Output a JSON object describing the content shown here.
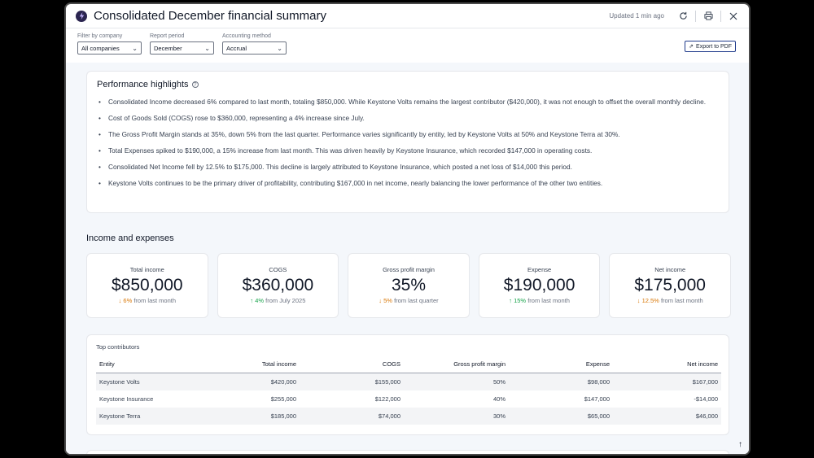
{
  "window": {
    "title": "Consolidated December financial summary",
    "updated": "Updated 1 min ago"
  },
  "filters": [
    {
      "label": "Filter by company",
      "value": "All companies"
    },
    {
      "label": "Report period",
      "value": "December"
    },
    {
      "label": "Accounting method",
      "value": "Accrual"
    }
  ],
  "export_label": "Export to PDF",
  "highlights": {
    "title": "Performance highlights",
    "items": [
      "Consolidated Income decreased 6% compared to last month, totaling $850,000. While Keystone Volts remains the largest contributor ($420,000), it was not enough to offset the overall monthly decline.",
      "Cost of Goods Sold (COGS) rose to $360,000, representing a 4% increase since July.",
      "The Gross Profit Margin stands at 35%, down 5% from the last quarter. Performance varies significantly by entity, led by Keystone Volts at 50% and Keystone Terra at 30%.",
      "Total Expenses spiked to $190,000, a 15% increase from last month. This was driven heavily by Keystone Insurance, which recorded $147,000 in operating costs.",
      "Consolidated Net Income fell by 12.5% to $175,000. This decline is largely attributed to Keystone Insurance, which posted a net loss of $14,000 this period.",
      "Keystone Volts continues to be the primary driver of profitability, contributing $167,000 in net income, nearly balancing the lower performance of the other two entities."
    ]
  },
  "income_section_title": "Income and expenses",
  "kpis": [
    {
      "label": "Total income",
      "value": "$850,000",
      "arrow": "↓",
      "direction": "down",
      "pct": "6%",
      "suffix": "from last month"
    },
    {
      "label": "COGS",
      "value": "$360,000",
      "arrow": "↑",
      "direction": "up",
      "pct": "4%",
      "suffix": "from July 2025"
    },
    {
      "label": "Gross profit margin",
      "value": "35%",
      "arrow": "↓",
      "direction": "down",
      "pct": "5%",
      "suffix": "from last quarter"
    },
    {
      "label": "Expense",
      "value": "$190,000",
      "arrow": "↑",
      "direction": "up",
      "pct": "15%",
      "suffix": "from last month"
    },
    {
      "label": "Net income",
      "value": "$175,000",
      "arrow": "↓",
      "direction": "down",
      "pct": "12.5%",
      "suffix": "from last month"
    }
  ],
  "contributors": {
    "title": "Top contributors",
    "columns": [
      "Entity",
      "Total income",
      "COGS",
      "Gross profit margin",
      "Expense",
      "Net income"
    ],
    "rows": [
      [
        "Keystone Volts",
        "$420,000",
        "$155,000",
        "50%",
        "$98,000",
        "$167,000"
      ],
      [
        "Keystone Insurance",
        "$255,000",
        "$122,000",
        "40%",
        "$147,000",
        "-$14,000"
      ],
      [
        "Keystone Terra",
        "$185,000",
        "$74,000",
        "30%",
        "$65,000",
        "$46,000"
      ]
    ]
  },
  "icons": {
    "logo": "bolt-logo-icon",
    "refresh": "refresh-icon",
    "print": "print-icon",
    "close": "close-icon",
    "export": "export-icon",
    "help": "help-icon",
    "scroll_top": "arrow-up-icon"
  },
  "colors": {
    "down": "#d97706",
    "up": "#16a34a",
    "logo_bg": "#2b2550"
  }
}
